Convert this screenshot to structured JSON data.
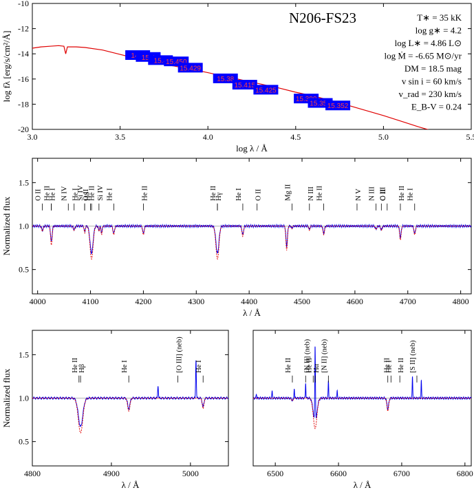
{
  "star_name": "N206-FS23",
  "parameters": [
    "T∗ = 35 kK",
    "log g∗ = 4.2",
    "log L∗ = 4.86 L⊙",
    "log Ṁ = -6.65 M⊙/yr",
    "DM = 18.5 mag",
    "v sin i = 60 km/s",
    "v_rad = 230 km/s",
    "E_B-V = 0.24"
  ],
  "colors": {
    "model": "#e00000",
    "observed": "#0000ee",
    "photometry_box": "#0000ff",
    "continuum": "#999999"
  },
  "chart_data": [
    {
      "id": "sed",
      "type": "line",
      "xlabel": "log λ / Å",
      "ylabel": "log fλ [erg/s/cm²/Å]",
      "xlim": [
        3.0,
        5.5
      ],
      "ylim": [
        -20,
        -10
      ],
      "xticks": [
        "3.0",
        "3.5",
        "4.0",
        "4.5",
        "5.0",
        "5.5"
      ],
      "yticks": [
        "-20",
        "-18",
        "-16",
        "-14",
        "-12",
        "-10"
      ],
      "series": [
        {
          "role": "model",
          "x": [
            3.0,
            3.05,
            3.1,
            3.15,
            3.18,
            3.19,
            3.2,
            3.25,
            3.3,
            3.4,
            3.5,
            3.6,
            3.7,
            3.8,
            3.9,
            4.0,
            4.1,
            4.2,
            4.3,
            4.4,
            4.5,
            4.6,
            4.7,
            4.8,
            4.9,
            5.0,
            5.1,
            5.2,
            5.5
          ],
          "y": [
            -13.55,
            -13.45,
            -13.4,
            -13.35,
            -13.4,
            -14.0,
            -13.45,
            -13.45,
            -13.5,
            -13.7,
            -14.05,
            -14.4,
            -14.7,
            -14.95,
            -15.2,
            -15.5,
            -15.8,
            -16.1,
            -16.4,
            -16.7,
            -17.05,
            -17.35,
            -17.7,
            -18.1,
            -18.5,
            -18.9,
            -19.35,
            -19.8,
            -21.0
          ]
        }
      ],
      "photometry": [
        {
          "label": "14.9",
          "x": 3.6,
          "y": -14.1
        },
        {
          "label": "15.4",
          "x": 3.66,
          "y": -14.25
        },
        {
          "label": "15.4",
          "x": 3.73,
          "y": -14.5
        },
        {
          "label": "15.450",
          "x": 3.82,
          "y": -14.6
        },
        {
          "label": "15.429",
          "x": 3.9,
          "y": -15.1
        },
        {
          "label": "15.38",
          "x": 4.1,
          "y": -15.95
        },
        {
          "label": "15.415",
          "x": 4.21,
          "y": -16.45
        },
        {
          "label": "15.425",
          "x": 4.33,
          "y": -16.85
        },
        {
          "label": "15.380",
          "x": 4.56,
          "y": -17.55
        },
        {
          "label": "15.352",
          "x": 4.64,
          "y": -17.9
        },
        {
          "label": "15.352",
          "x": 4.74,
          "y": -18.1
        }
      ]
    },
    {
      "id": "blue",
      "type": "line",
      "xlabel": "λ / Å",
      "ylabel": "Normalized flux",
      "xlim": [
        3990,
        4820
      ],
      "ylim": [
        0.22,
        1.78
      ],
      "xticks": [
        "4000",
        "4100",
        "4200",
        "4300",
        "4400",
        "4500",
        "4600",
        "4700",
        "4800"
      ],
      "yticks": [
        "0.5",
        "1.0",
        "1.5"
      ],
      "absorption": [
        {
          "x": 4009,
          "d": 0.06,
          "w": 2
        },
        {
          "x": 4026,
          "d": 0.22,
          "w": 2
        },
        {
          "x": 4069,
          "d": 0.05,
          "w": 2
        },
        {
          "x": 4089,
          "d": 0.08,
          "w": 1.5
        },
        {
          "x": 4102,
          "d": 0.38,
          "w": 4
        },
        {
          "x": 4116,
          "d": 0.06,
          "w": 1.5
        },
        {
          "x": 4121,
          "d": 0.1,
          "w": 1.5
        },
        {
          "x": 4144,
          "d": 0.1,
          "w": 2
        },
        {
          "x": 4200,
          "d": 0.1,
          "w": 2
        },
        {
          "x": 4340,
          "d": 0.38,
          "w": 4
        },
        {
          "x": 4388,
          "d": 0.12,
          "w": 2
        },
        {
          "x": 4471,
          "d": 0.28,
          "w": 2
        },
        {
          "x": 4481,
          "d": 0.03,
          "w": 1.5
        },
        {
          "x": 4514,
          "d": 0.05,
          "w": 1.5
        },
        {
          "x": 4541,
          "d": 0.1,
          "w": 2
        },
        {
          "x": 4640,
          "d": 0.04,
          "w": 2
        },
        {
          "x": 4650,
          "d": 0.05,
          "w": 2
        },
        {
          "x": 4686,
          "d": 0.16,
          "w": 2
        },
        {
          "x": 4713,
          "d": 0.1,
          "w": 2
        }
      ]
    },
    {
      "id": "hbeta",
      "type": "line",
      "xlabel": "λ / Å",
      "ylabel": "Normalized flux",
      "xlim": [
        4800,
        5048
      ],
      "ylim": [
        0.22,
        1.78
      ],
      "xticks": [
        "4800",
        "4900",
        "5000"
      ],
      "yticks": [
        "0.5",
        "1.0",
        "1.5"
      ],
      "absorption": [
        {
          "x": 4861,
          "d": 0.4,
          "w": 4
        },
        {
          "x": 4922,
          "d": 0.15,
          "w": 2
        },
        {
          "x": 5016,
          "d": 0.12,
          "w": 1.5
        }
      ],
      "emission": [
        {
          "x": 4959,
          "h": 0.15,
          "w": 0.6
        },
        {
          "x": 5007,
          "h": 0.45,
          "w": 0.6
        }
      ]
    },
    {
      "id": "halpha",
      "type": "line",
      "xlabel": "λ / Å",
      "ylabel": "",
      "xlim": [
        6465,
        6810
      ],
      "ylim": [
        0.22,
        1.78
      ],
      "xticks": [
        "6500",
        "6600",
        "6700",
        "6800"
      ],
      "yticks": [],
      "absorption": [
        {
          "x": 6563,
          "d": 0.35,
          "w": 4
        },
        {
          "x": 6678,
          "d": 0.15,
          "w": 2
        },
        {
          "x": 6527,
          "d": 0.03,
          "w": 2
        }
      ],
      "emission": [
        {
          "x": 6563,
          "h": 0.9,
          "w": 0.8
        },
        {
          "x": 6548,
          "h": 0.17,
          "w": 0.6
        },
        {
          "x": 6584,
          "h": 0.2,
          "w": 0.6
        },
        {
          "x": 6717,
          "h": 0.25,
          "w": 0.6
        },
        {
          "x": 6731,
          "h": 0.2,
          "w": 0.6
        },
        {
          "x": 6495,
          "h": 0.08,
          "w": 0.6
        },
        {
          "x": 6530,
          "h": 0.12,
          "w": 0.6
        },
        {
          "x": 6598,
          "h": 0.08,
          "w": 0.6
        },
        {
          "x": 6470,
          "h": 0.05,
          "w": 0.6
        }
      ]
    }
  ],
  "line_ids": {
    "blue": [
      {
        "label": "O II",
        "x": 4009
      },
      {
        "label": "He I",
        "x": 4026
      },
      {
        "label": "He II",
        "x": 4026
      },
      {
        "label": "He I",
        "x": 4069
      },
      {
        "label": "N IV",
        "x": 4058
      },
      {
        "label": "O II",
        "x": 4089
      },
      {
        "label": "Si IV",
        "x": 4089
      },
      {
        "label": "He II",
        "x": 4100
      },
      {
        "label": "Hδ",
        "x": 4102
      },
      {
        "label": "Si IV",
        "x": 4116
      },
      {
        "label": "He I",
        "x": 4144
      },
      {
        "label": "He II",
        "x": 4200
      },
      {
        "label": "He II",
        "x": 4340
      },
      {
        "label": "Hγ",
        "x": 4340
      },
      {
        "label": "He I",
        "x": 4388
      },
      {
        "label": "O II",
        "x": 4415
      },
      {
        "label": "Mg II",
        "x": 4481
      },
      {
        "label": "N III",
        "x": 4514
      },
      {
        "label": "He II",
        "x": 4541
      },
      {
        "label": "N V",
        "x": 4604
      },
      {
        "label": "N III",
        "x": 4640
      },
      {
        "label": "C III",
        "x": 4650
      },
      {
        "label": "O II",
        "x": 4661
      },
      {
        "label": "He II",
        "x": 4686
      },
      {
        "label": "He I",
        "x": 4713
      }
    ],
    "hbeta": [
      {
        "label": "He II",
        "x": 4859
      },
      {
        "label": "Hβ",
        "x": 4861
      },
      {
        "label": "He I",
        "x": 4922
      },
      {
        "label": "[O III] (neb)",
        "x": 4984
      },
      {
        "label": "He I",
        "x": 5016
      }
    ],
    "halpha": [
      {
        "label": "He II",
        "x": 6527
      },
      {
        "label": "[N II] (neb)",
        "x": 6548
      },
      {
        "label": "He II",
        "x": 6560
      },
      {
        "label": "Hα",
        "x": 6563
      },
      {
        "label": "[N II] (neb)",
        "x": 6584
      },
      {
        "label": "He I",
        "x": 6678
      },
      {
        "label": "He II",
        "x": 6683
      },
      {
        "label": "He II",
        "x": 6697
      },
      {
        "label": "[S II] (neb)",
        "x": 6724
      }
    ]
  }
}
